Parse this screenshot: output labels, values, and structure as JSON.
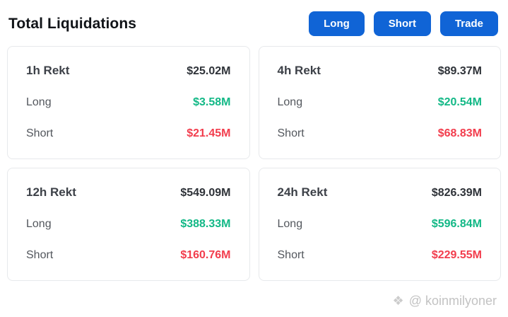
{
  "header": {
    "title": "Total Liquidations",
    "buttons": [
      {
        "label": "Long"
      },
      {
        "label": "Short"
      },
      {
        "label": "Trade"
      }
    ]
  },
  "cards": [
    {
      "period": "1h Rekt",
      "total": "$25.02M",
      "long_label": "Long",
      "long_value": "$3.58M",
      "short_label": "Short",
      "short_value": "$21.45M"
    },
    {
      "period": "4h Rekt",
      "total": "$89.37M",
      "long_label": "Long",
      "long_value": "$20.54M",
      "short_label": "Short",
      "short_value": "$68.83M"
    },
    {
      "period": "12h Rekt",
      "total": "$549.09M",
      "long_label": "Long",
      "long_value": "$388.33M",
      "short_label": "Short",
      "short_value": "$160.76M"
    },
    {
      "period": "24h Rekt",
      "total": "$826.39M",
      "long_label": "Long",
      "long_value": "$596.84M",
      "short_label": "Short",
      "short_value": "$229.55M"
    }
  ],
  "watermark": {
    "icon": "❖",
    "text": "@ koinmilyoner"
  },
  "colors": {
    "accent_blue": "#1064d6",
    "long_green": "#12b886",
    "short_red": "#f23d4d"
  }
}
